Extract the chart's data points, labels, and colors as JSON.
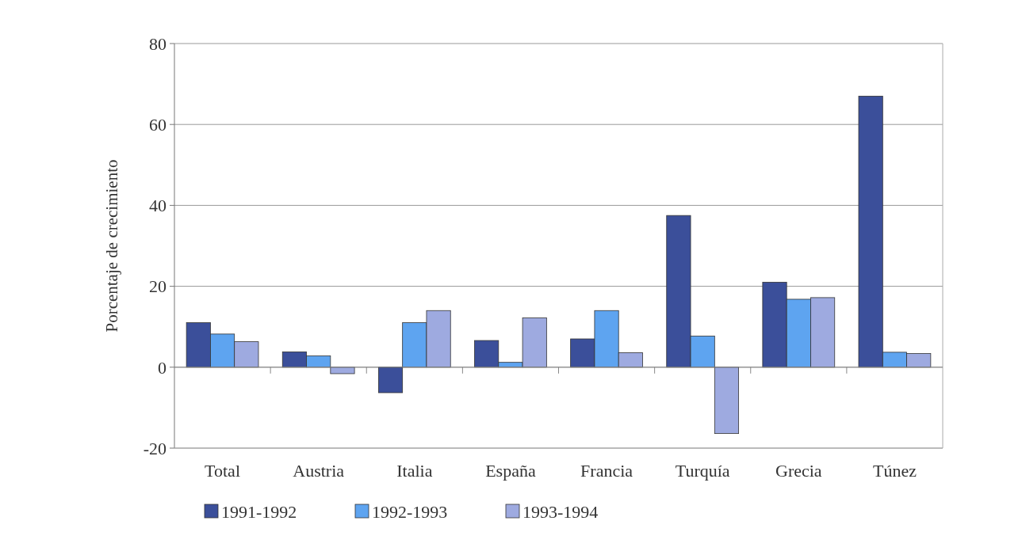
{
  "chart_data": {
    "type": "bar",
    "ylabel": "Porcentaje de crecimiento",
    "categories": [
      "Total",
      "Austria",
      "Italia",
      "España",
      "Francia",
      "Turquía",
      "Grecia",
      "Túnez"
    ],
    "series": [
      {
        "name": "1991-1992",
        "color": "#3b4f9a",
        "values": [
          11,
          3.8,
          -6.3,
          6.6,
          7,
          37.5,
          21,
          67
        ]
      },
      {
        "name": "1992-1993",
        "color": "#5ea4f0",
        "values": [
          8.2,
          2.8,
          11,
          1.2,
          14,
          7.7,
          16.8,
          3.7
        ]
      },
      {
        "name": "1993-1994",
        "color": "#9eaae0",
        "values": [
          6.3,
          -1.6,
          14,
          12.2,
          3.6,
          -16.4,
          17.2,
          3.4
        ]
      }
    ],
    "ylim": [
      -20,
      80
    ],
    "yticks": [
      -20,
      0,
      20,
      40,
      60,
      80
    ],
    "grid": "y",
    "legend": "bottom"
  }
}
